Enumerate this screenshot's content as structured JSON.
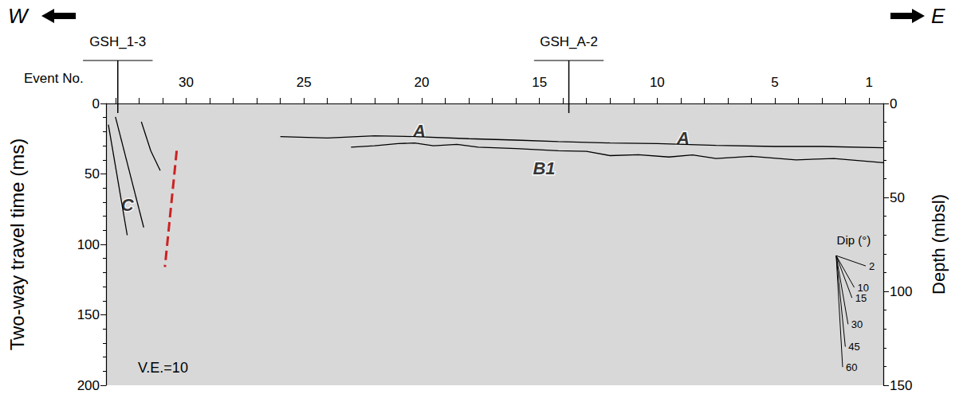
{
  "chart_data": {
    "type": "line",
    "x_label": "Event No.",
    "y_label": "Two-way travel time (ms)",
    "y2_label": "Depth (mbsl)",
    "xlim": [
      33.4,
      0.4
    ],
    "xticks": [
      30,
      25,
      20,
      15,
      10,
      5,
      1
    ],
    "ylim": [
      0,
      200
    ],
    "yticks": [
      0,
      50,
      100,
      150,
      200
    ],
    "y2lim": [
      0,
      150
    ],
    "y2ticks": [
      0,
      50,
      100,
      150
    ],
    "grid": false,
    "series": [
      {
        "x": [
          26.0,
          24.0,
          22.0,
          20.3,
          18.0,
          16.0,
          14.2,
          12.0,
          10.0,
          7.5,
          5.0,
          3.0,
          0.4
        ],
        "values": [
          23.5,
          24.5,
          23.0,
          23.5,
          25.0,
          26.0,
          27.0,
          28.0,
          28.5,
          29.7,
          30.5,
          30.5,
          31.4
        ],
        "color": "#000000",
        "line_style": "solid"
      },
      {
        "x": [
          23.0,
          22.0,
          21.0,
          20.3,
          19.5,
          18.5,
          17.6,
          16.0,
          14.2,
          13.0,
          12.0,
          10.8,
          9.5,
          8.5,
          7.5,
          6.0,
          4.1,
          2.5,
          0.4
        ],
        "values": [
          31.0,
          30.0,
          28.5,
          28.0,
          30.0,
          29.0,
          31.0,
          32.0,
          33.6,
          34.0,
          37.0,
          36.4,
          38.0,
          36.5,
          39.0,
          37.5,
          40.0,
          39.0,
          42.0
        ],
        "color": "#000000",
        "line_style": "solid"
      },
      {
        "x": [
          33.3,
          32.5
        ],
        "values": [
          15.0,
          93.5
        ],
        "color": "#000000",
        "line_style": "solid"
      },
      {
        "x": [
          33.0,
          31.8
        ],
        "values": [
          9.5,
          88.0
        ],
        "color": "#000000",
        "line_style": "solid"
      },
      {
        "x": [
          31.9,
          31.5,
          31.1
        ],
        "values": [
          13.0,
          33.6,
          47.6
        ],
        "color": "#000000",
        "line_style": "solid"
      },
      {
        "x": [
          30.4,
          30.9
        ],
        "values": [
          33.6,
          116.0
        ],
        "color": "#cc2222",
        "line_style": "dashed"
      }
    ],
    "labels": [
      {
        "text": "A",
        "x": 20.1,
        "y": 19.6
      },
      {
        "text": "A",
        "x": 8.9,
        "y": 24.5
      },
      {
        "text": "B1",
        "x": 14.8,
        "y": 46.0
      },
      {
        "text": "C",
        "x": 32.5,
        "y": 72.0
      }
    ],
    "sites": [
      {
        "label": "GSH_1-3",
        "event": 32.9
      },
      {
        "label": "GSH_A-2",
        "event": 13.75
      }
    ],
    "directions": [
      "W",
      "E"
    ],
    "ve_label": "V.E.=10",
    "vertical_exaggeration": 10,
    "dip_scale": {
      "title": "Dip (°)",
      "origin": [
        2.4,
        108
      ],
      "dips": [
        2,
        10,
        15,
        30,
        45,
        60
      ]
    }
  }
}
